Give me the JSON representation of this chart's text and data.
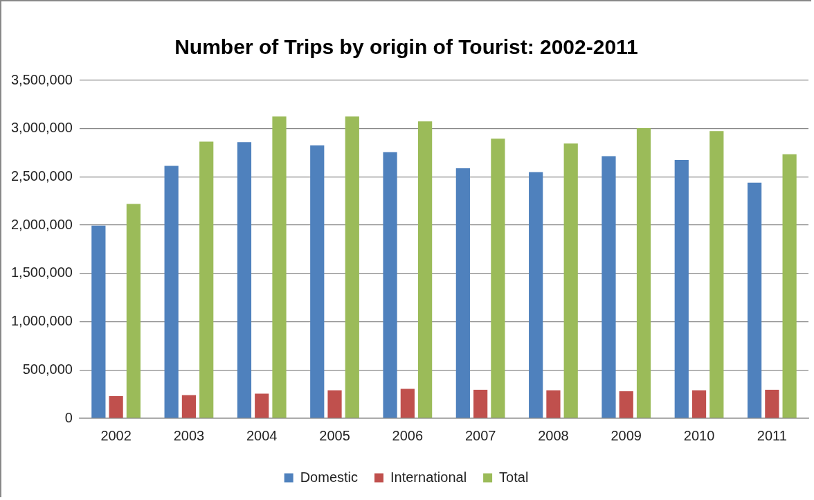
{
  "chart_data": {
    "type": "bar",
    "title": "Number of Trips by origin of Tourist: 2002-2011",
    "categories": [
      "2002",
      "2003",
      "2004",
      "2005",
      "2006",
      "2007",
      "2008",
      "2009",
      "2010",
      "2011"
    ],
    "series": [
      {
        "name": "Domestic",
        "color": "#4f81bd",
        "values": [
          1995000,
          2615000,
          2860000,
          2825000,
          2755000,
          2590000,
          2550000,
          2715000,
          2675000,
          2440000
        ]
      },
      {
        "name": "International",
        "color": "#c0504d",
        "values": [
          230000,
          240000,
          255000,
          290000,
          305000,
          295000,
          290000,
          280000,
          290000,
          295000
        ]
      },
      {
        "name": "Total",
        "color": "#9bbb59",
        "values": [
          2220000,
          2865000,
          3125000,
          3125000,
          3075000,
          2895000,
          2845000,
          3005000,
          2975000,
          2735000
        ]
      }
    ],
    "ylim": [
      0,
      3500000
    ],
    "yticks": [
      0,
      {
        "value": 500000,
        "label": "500,000"
      },
      {
        "value": 1000000,
        "label": "1,000,000"
      },
      {
        "value": 1500000,
        "label": "1,500,000"
      },
      {
        "value": 2000000,
        "label": "2,000,000"
      },
      {
        "value": 2500000,
        "label": "2,500,000"
      },
      {
        "value": 3000000,
        "label": "3,000,000"
      },
      {
        "value": 3500000,
        "label": "3,500,000"
      }
    ],
    "grid": "y",
    "legend": "bottom"
  }
}
